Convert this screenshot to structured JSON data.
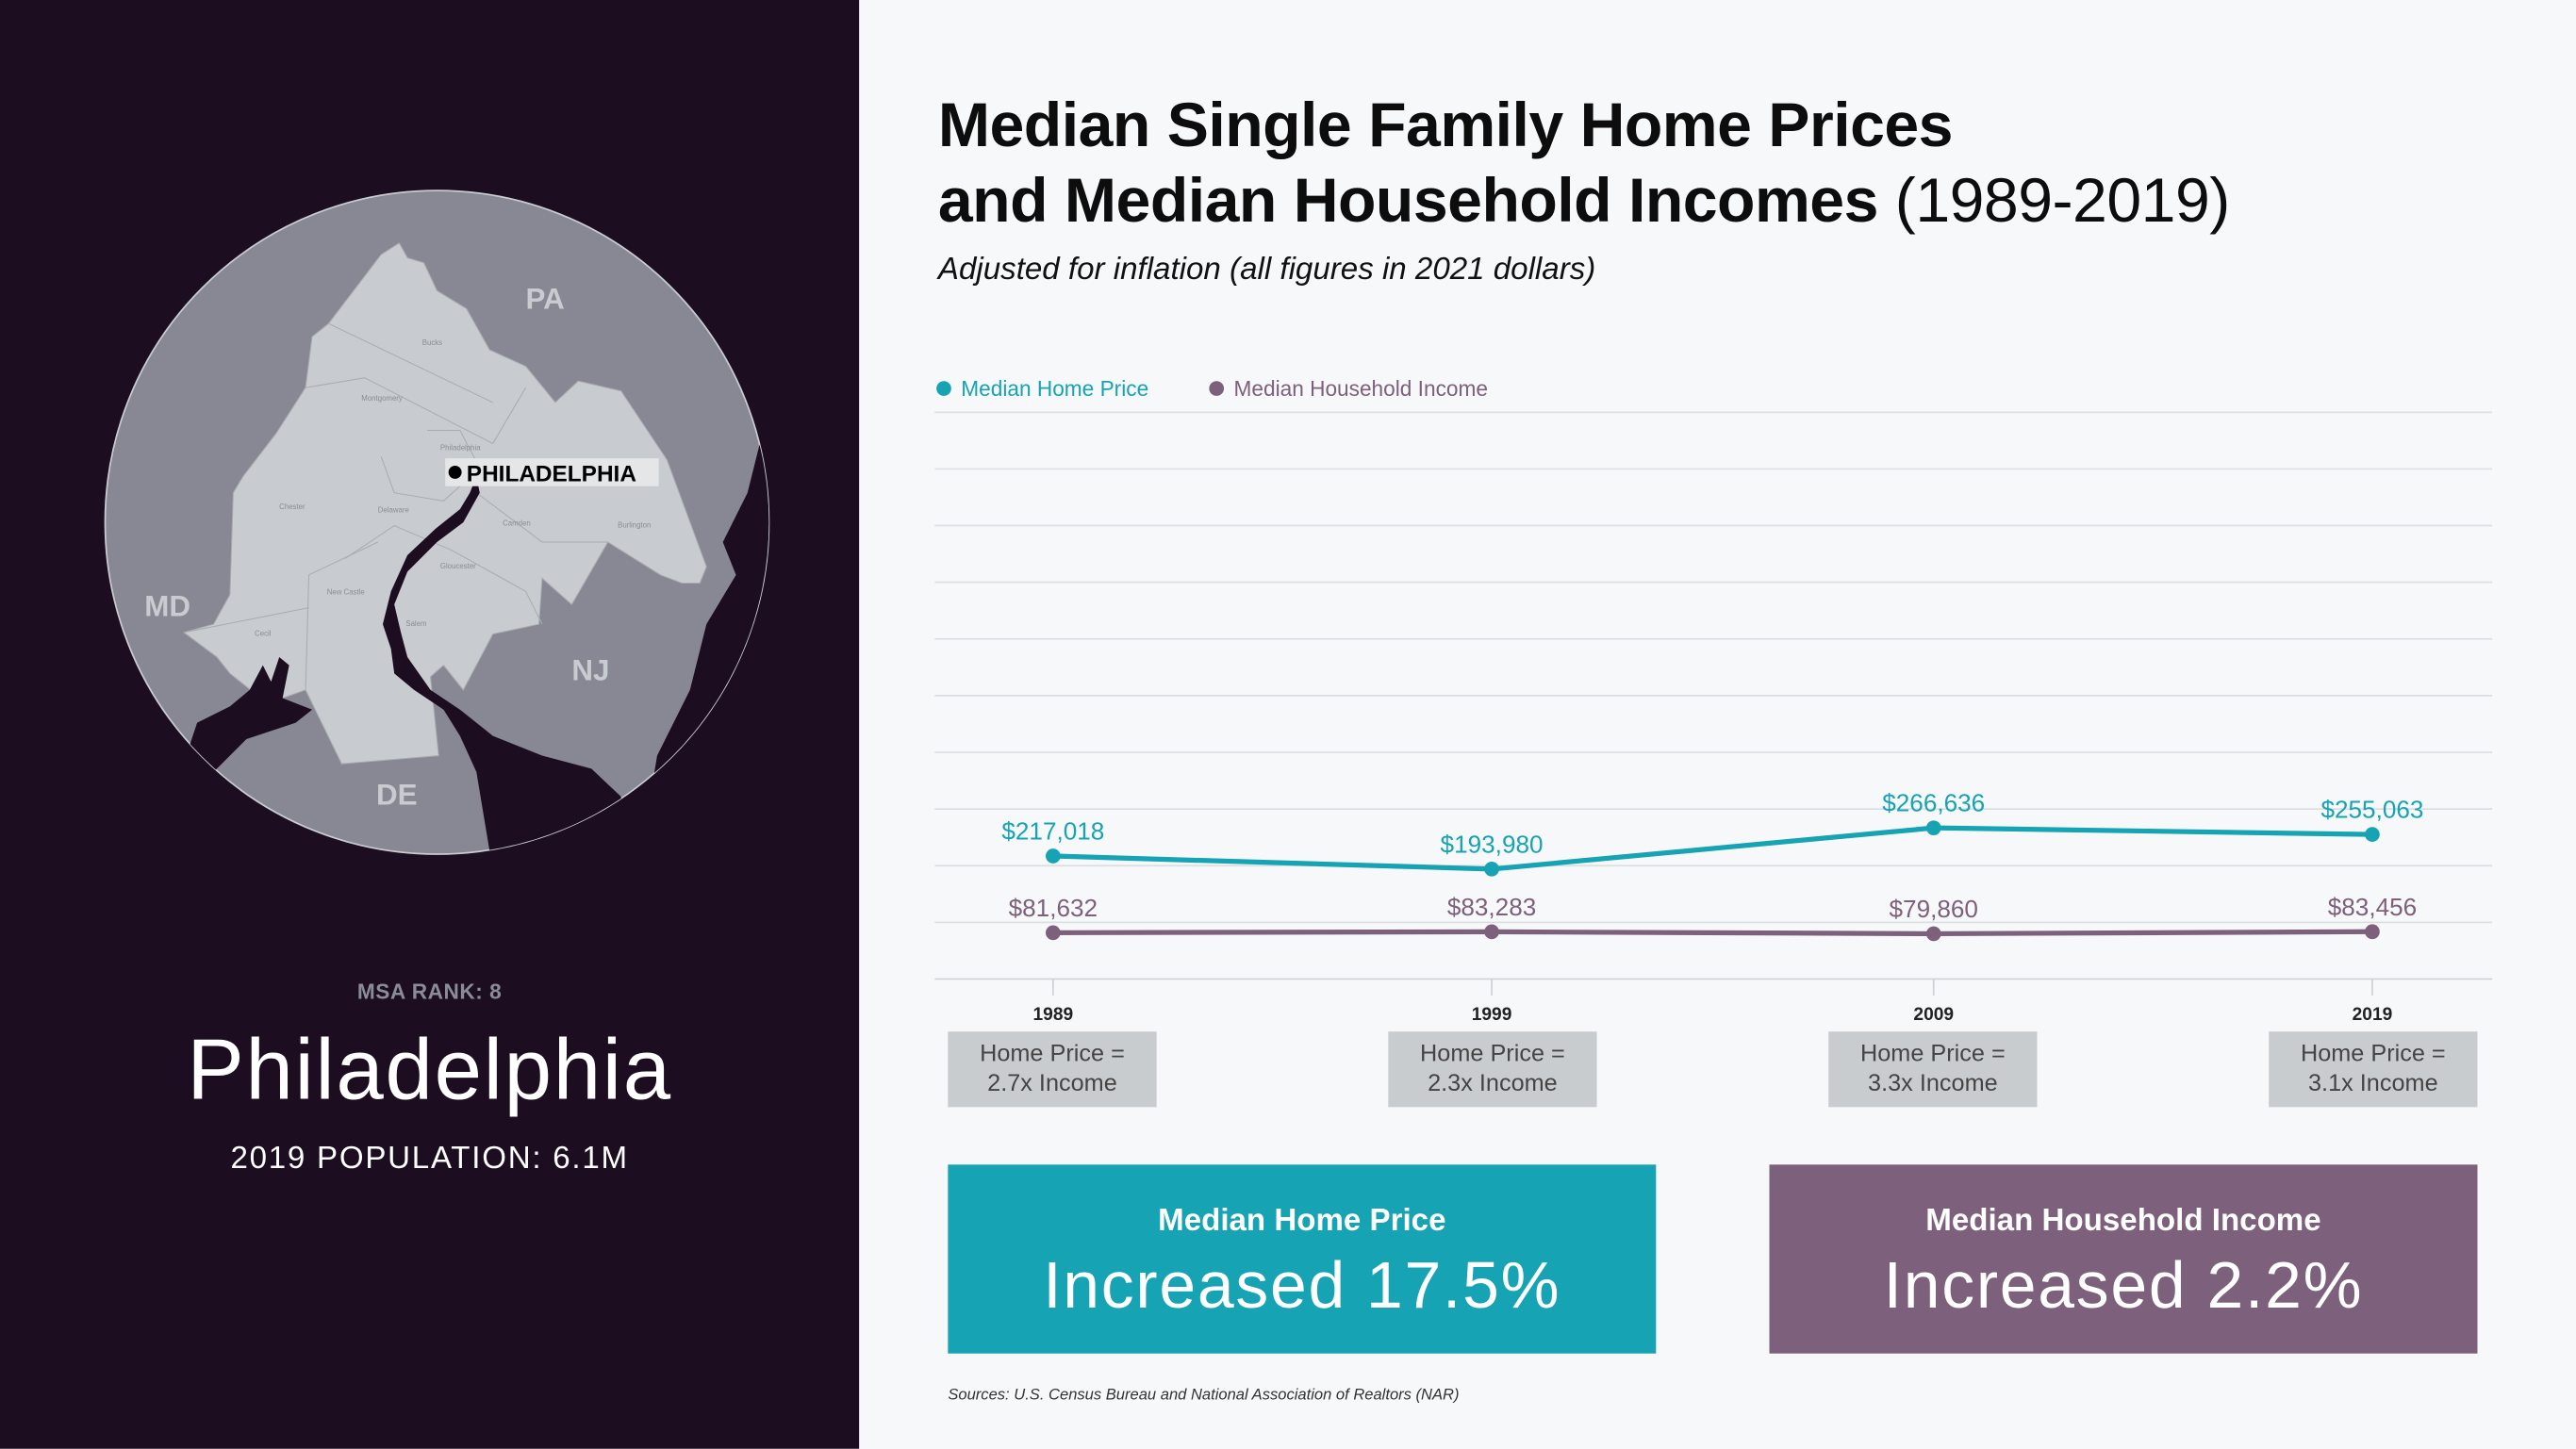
{
  "colors": {
    "home_price": "#16a3b4",
    "household_income": "#7d607b",
    "left_bg": "#1d0d20",
    "map_circle": "#878893",
    "map_land": "#c8ccd0",
    "map_water": "#1d0d20"
  },
  "map": {
    "state_labels": [
      "PA",
      "MD",
      "NJ",
      "DE"
    ],
    "county_labels": [
      "Bucks",
      "Montgomery",
      "Philadelphia",
      "Chester",
      "Delaware",
      "Camden",
      "Burlington",
      "Gloucester",
      "New Castle",
      "Salem",
      "Cecil"
    ],
    "city_label": "PHILADELPHIA"
  },
  "sidebar": {
    "msa_rank": "MSA RANK: 8",
    "city": "Philadelphia",
    "population": "2019 POPULATION: 6.1M"
  },
  "header": {
    "title_line1": "Median Single Family Home Prices",
    "title_line2": "and Median Household Incomes",
    "title_years": "(1989-2019)",
    "subtitle": "Adjusted for inflation (all figures in 2021 dollars)"
  },
  "chart_data": {
    "type": "line",
    "categories": [
      "1989",
      "1999",
      "2009",
      "2019"
    ],
    "series": [
      {
        "name": "Median Home Price",
        "values": [
          217018,
          193980,
          266636,
          255063
        ],
        "labels": [
          "$217,018",
          "$193,980",
          "$266,636",
          "$255,063"
        ],
        "color": "#16a3b4"
      },
      {
        "name": "Median Household Income",
        "values": [
          81632,
          83283,
          79860,
          83456
        ],
        "labels": [
          "$81,632",
          "$83,283",
          "$79,860",
          "$83,456"
        ],
        "color": "#7d607b"
      }
    ],
    "ylim": [
      0,
      1000000
    ],
    "grid": true,
    "legend": "top-left",
    "xlabel": "",
    "ylabel": ""
  },
  "ratios": [
    {
      "line1": "Home Price =",
      "line2": "2.7x Income"
    },
    {
      "line1": "Home Price =",
      "line2": "2.3x Income"
    },
    {
      "line1": "Home Price =",
      "line2": "3.3x Income"
    },
    {
      "line1": "Home Price =",
      "line2": "3.1x Income"
    }
  ],
  "stats": [
    {
      "heading": "Median Home Price",
      "value": "Increased 17.5%"
    },
    {
      "heading": "Median Household Income",
      "value": "Increased 2.2%"
    }
  ],
  "sources": "Sources: U.S. Census Bureau and National Association of Realtors (NAR)"
}
